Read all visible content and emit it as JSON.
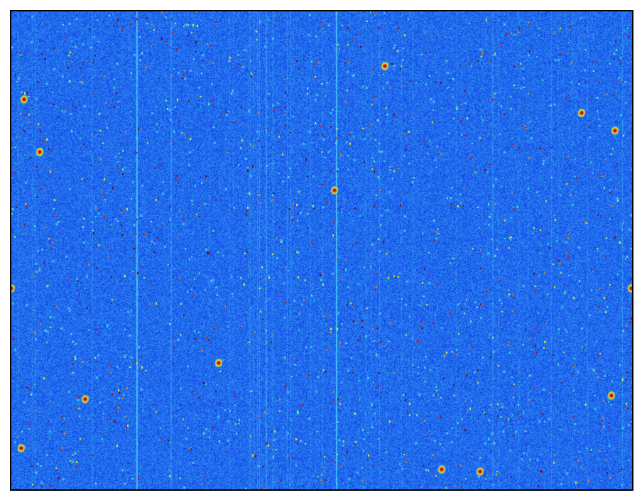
{
  "image": {
    "kind": "detector-frame",
    "colormap": "jet",
    "colors": {
      "background": "#1450f0",
      "noise_low": "#0a2ee6",
      "noise_high": "#2a8cff",
      "streak": "#5fd0ff",
      "hot_cyan": "#30e0e0",
      "hot_yellow": "#f0f020",
      "hot_red": "#c81010",
      "hot_darkred": "#600000",
      "frame": "#000000"
    }
  }
}
